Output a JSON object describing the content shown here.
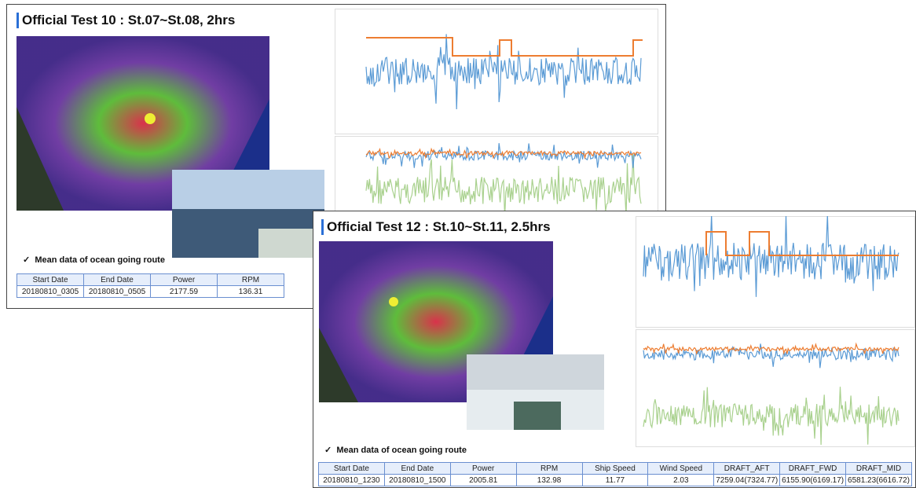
{
  "slides": [
    {
      "title": "Official Test 10 : St.07~St.08, 2hrs",
      "note": "Mean data of ocean going route",
      "table": {
        "headers": [
          "Start Date",
          "End Date",
          "Power",
          "RPM"
        ],
        "rows": [
          [
            "20180810_0305",
            "20180810_0505",
            "2177.59",
            "136.31"
          ]
        ]
      }
    },
    {
      "title": "Official Test 12 : St.10~St.11, 2.5hrs",
      "note": "Mean data of ocean going route",
      "table": {
        "headers": [
          "Start Date",
          "End Date",
          "Power",
          "RPM",
          "Ship Speed",
          "Wind Speed",
          "DRAFT_AFT",
          "DRAFT_FWD",
          "DRAFT_MID"
        ],
        "rows": [
          [
            "20180810_1230",
            "20180810_1500",
            "2005.81",
            "132.98",
            "11.77",
            "2.03",
            "7259.04(7324.77)",
            "6155.90(6169.17)",
            "6581.23(6616.72)"
          ]
        ]
      }
    }
  ]
}
